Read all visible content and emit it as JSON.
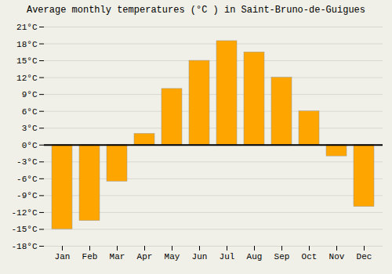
{
  "chart_data": {
    "type": "bar",
    "title": "Average monthly temperatures (°C ) in Saint-Bruno-de-Guigues",
    "categories": [
      "Jan",
      "Feb",
      "Mar",
      "Apr",
      "May",
      "Jun",
      "Jul",
      "Aug",
      "Sep",
      "Oct",
      "Nov",
      "Dec"
    ],
    "values": [
      -15,
      -13.5,
      -6.5,
      2,
      10,
      15,
      18.5,
      16.5,
      12,
      6,
      -2,
      -11
    ],
    "color": "#FFA500",
    "ylim": [
      -18,
      21
    ],
    "yticks": [
      {
        "value": -18,
        "label": "-18°C"
      },
      {
        "value": -15,
        "label": "-15°C"
      },
      {
        "value": -12,
        "label": "-12°C"
      },
      {
        "value": -9,
        "label": "-9°C"
      },
      {
        "value": -6,
        "label": "-6°C"
      },
      {
        "value": -3,
        "label": "-3°C"
      },
      {
        "value": 0,
        "label": "0°C"
      },
      {
        "value": 3,
        "label": "3°C"
      },
      {
        "value": 6,
        "label": "6°C"
      },
      {
        "value": 9,
        "label": "9°C"
      },
      {
        "value": 12,
        "label": "12°C"
      },
      {
        "value": 15,
        "label": "15°C"
      },
      {
        "value": 18,
        "label": "18°C"
      },
      {
        "value": 21,
        "label": "21°C"
      }
    ],
    "grid": true
  }
}
